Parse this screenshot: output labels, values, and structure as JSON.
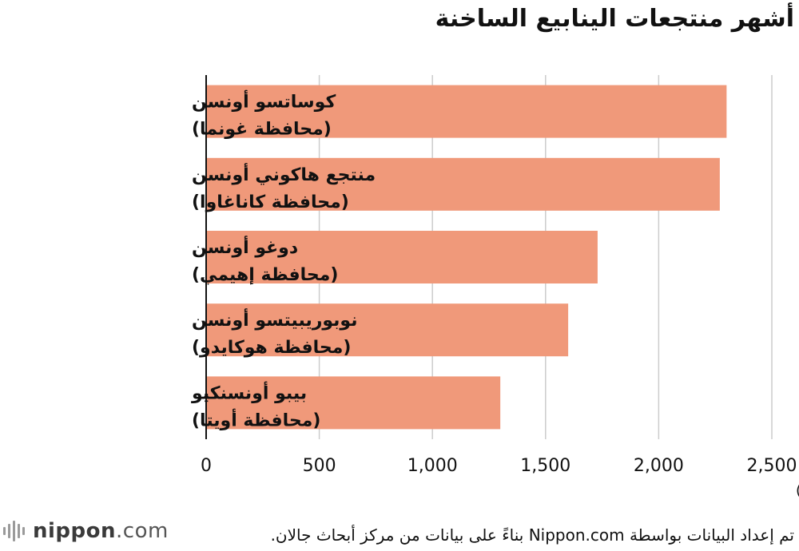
{
  "chart_data": {
    "type": "bar",
    "orientation": "horizontal",
    "title": "أشهر منتجعات الينابيع الساخنة",
    "categories": [
      [
        "كوساتسو أونسن",
        "(محافظة غونما)"
      ],
      [
        "منتجع هاكوني أونسن",
        "(محافظة كاناغاوا)"
      ],
      [
        "دوغو أونسن",
        "(محافظة إهيمي)"
      ],
      [
        "نوبوريبيتسو أونسن",
        "(محافظة هوكايدو)"
      ],
      [
        "بيبو أونسنكيو",
        "(محافظة أويتا)"
      ]
    ],
    "values": [
      2300,
      2270,
      1730,
      1600,
      1300
    ],
    "unit_label": "(صوت)",
    "xlim": [
      0,
      2500
    ],
    "xticks": [
      0,
      500,
      1000,
      1500,
      2000,
      2500
    ],
    "xtick_labels": [
      "0",
      "500",
      "1,000",
      "1,500",
      "2,000",
      "2,500"
    ],
    "grid": true,
    "bar_color": "#f0997a",
    "grid_color": "#cccccc"
  },
  "footer": {
    "logo_name": "nippon",
    "logo_suffix": ".com",
    "source_note": "تم إعداد البيانات بواسطة Nippon.com بناءً على بيانات من مركز أبحاث جالان."
  }
}
